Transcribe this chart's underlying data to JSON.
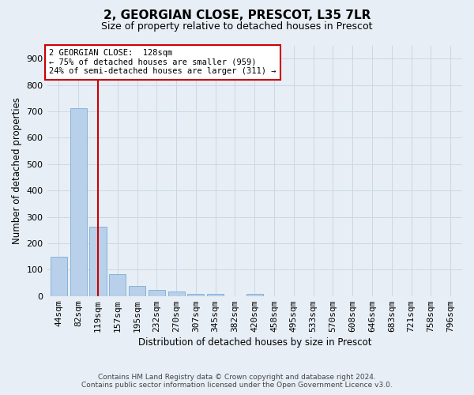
{
  "title": "2, GEORGIAN CLOSE, PRESCOT, L35 7LR",
  "subtitle": "Size of property relative to detached houses in Prescot",
  "xlabel": "Distribution of detached houses by size in Prescot",
  "ylabel": "Number of detached properties",
  "footer_line1": "Contains HM Land Registry data © Crown copyright and database right 2024.",
  "footer_line2": "Contains public sector information licensed under the Open Government Licence v3.0.",
  "bar_labels": [
    "44sqm",
    "82sqm",
    "119sqm",
    "157sqm",
    "195sqm",
    "232sqm",
    "270sqm",
    "307sqm",
    "345sqm",
    "382sqm",
    "420sqm",
    "458sqm",
    "495sqm",
    "533sqm",
    "570sqm",
    "608sqm",
    "646sqm",
    "683sqm",
    "721sqm",
    "758sqm",
    "796sqm"
  ],
  "bar_values": [
    148,
    711,
    263,
    84,
    38,
    24,
    16,
    8,
    8,
    0,
    8,
    0,
    0,
    0,
    0,
    0,
    0,
    0,
    0,
    0,
    0
  ],
  "bar_color": "#b8d0ea",
  "bar_edge_color": "#7aadd4",
  "grid_color": "#c8d8e8",
  "vline_index": 2,
  "vline_color": "#cc0000",
  "ann_line1": "2 GEORGIAN CLOSE:  128sqm",
  "ann_line2": "← 75% of detached houses are smaller (959)",
  "ann_line3": "24% of semi-detached houses are larger (311) →",
  "annotation_box_color": "#ffffff",
  "annotation_box_edge": "#cc0000",
  "ylim": [
    0,
    950
  ],
  "yticks": [
    0,
    100,
    200,
    300,
    400,
    500,
    600,
    700,
    800,
    900
  ],
  "bg_color": "#e8eef5",
  "title_fontsize": 11,
  "subtitle_fontsize": 9
}
